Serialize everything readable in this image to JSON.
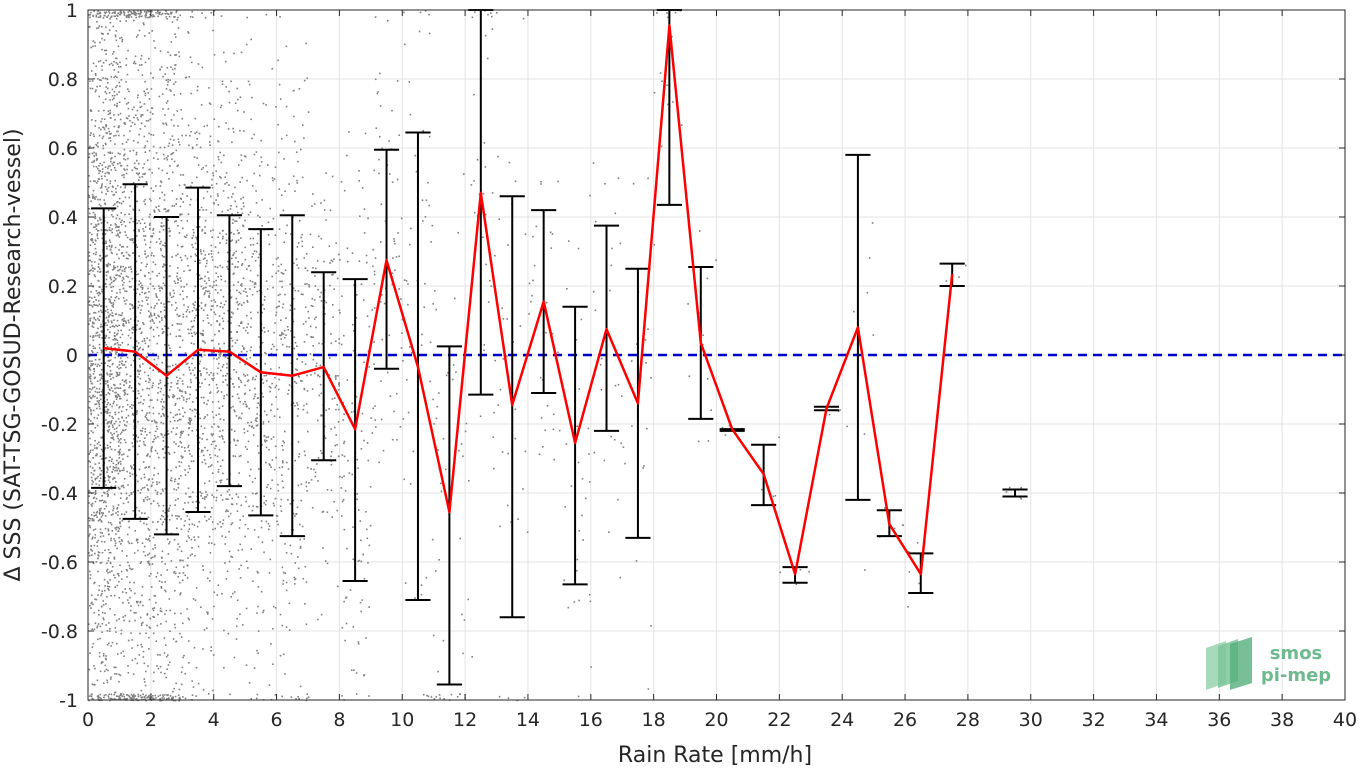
{
  "chart_data": {
    "type": "line",
    "xlabel": "Rain Rate [mm/h]",
    "ylabel": "Δ SSS (SAT-TSG-GOSUD-Research-vessel)",
    "xlim": [
      0,
      40
    ],
    "ylim": [
      -1,
      1
    ],
    "xticks": [
      "0",
      "2",
      "4",
      "6",
      "8",
      "10",
      "12",
      "14",
      "16",
      "18",
      "20",
      "22",
      "24",
      "26",
      "28",
      "30",
      "32",
      "34",
      "36",
      "38",
      "40"
    ],
    "yticks": [
      "-1",
      "-0.8",
      "-0.6",
      "-0.4",
      "-0.2",
      "0",
      "0.2",
      "0.4",
      "0.6",
      "0.8",
      "1"
    ],
    "grid": true,
    "colors": {
      "mean_line": "#ff0000",
      "zero_line": "#0000cc",
      "errorbars": "#000000",
      "scatter": "#808080"
    },
    "series": [
      {
        "x": [
          0.5,
          1.5,
          2.5,
          3.5,
          4.5,
          5.5,
          6.5,
          7.5,
          8.5,
          9.5,
          10.5,
          11.5,
          12.5,
          13.5,
          14.5,
          15.5,
          16.5,
          17.5,
          18.5,
          19.5,
          20.5,
          21.5,
          22.5,
          23.5,
          24.5,
          25.5,
          26.5,
          27.5
        ],
        "y": [
          0.02,
          0.01,
          -0.06,
          0.015,
          0.01,
          -0.05,
          -0.06,
          -0.035,
          -0.215,
          0.275,
          -0.035,
          -0.455,
          0.47,
          -0.145,
          0.155,
          -0.255,
          0.075,
          -0.14,
          0.955,
          0.035,
          -0.215,
          -0.345,
          -0.635,
          -0.155,
          0.08,
          -0.49,
          -0.635,
          0.235
        ],
        "lower": [
          -0.385,
          -0.475,
          -0.52,
          -0.455,
          -0.38,
          -0.465,
          -0.525,
          -0.305,
          -0.655,
          -0.04,
          -0.71,
          -0.955,
          -0.115,
          -0.76,
          -0.11,
          -0.665,
          -0.22,
          -0.53,
          0.435,
          -0.185,
          -0.22,
          -0.435,
          -0.66,
          -0.16,
          -0.42,
          -0.525,
          -0.69,
          0.2
        ],
        "upper": [
          0.425,
          0.495,
          0.4,
          0.485,
          0.405,
          0.365,
          0.405,
          0.24,
          0.22,
          0.595,
          0.645,
          0.025,
          1.0,
          0.46,
          0.42,
          0.14,
          0.375,
          0.25,
          1.0,
          0.255,
          -0.215,
          -0.26,
          -0.615,
          -0.15,
          0.58,
          -0.45,
          -0.575,
          0.265
        ]
      }
    ],
    "isolated_errorbars": [
      {
        "x": 29.5,
        "y": -0.4,
        "lower": -0.41,
        "upper": -0.39
      }
    ],
    "reference_line": {
      "y": 0
    }
  },
  "logo": {
    "line1": "smos",
    "line2": "pi-mep"
  }
}
